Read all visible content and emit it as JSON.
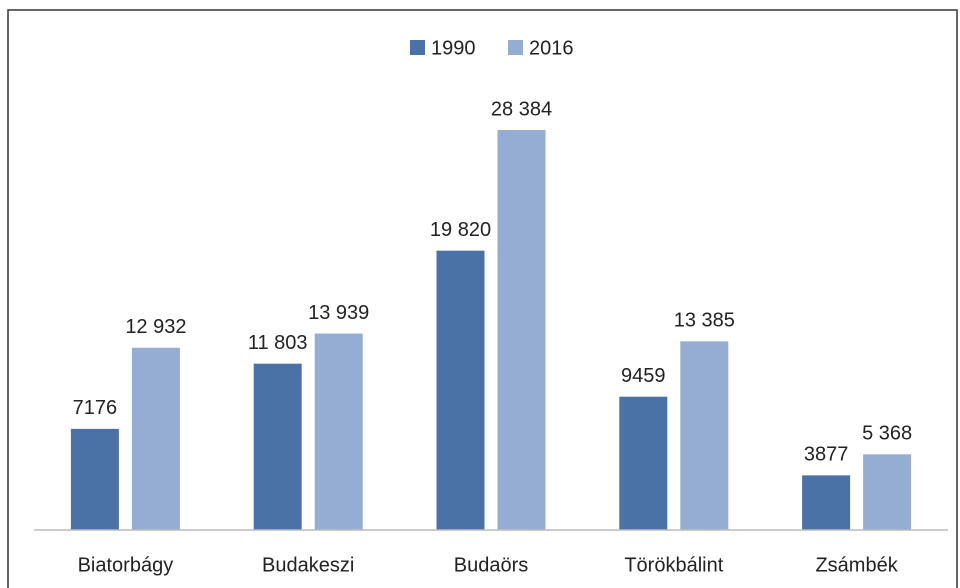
{
  "chart_data": {
    "type": "bar",
    "categories": [
      "Biatorbágy",
      "Budakeszi",
      "Budaörs",
      "Törökbálint",
      "Zsámbék"
    ],
    "series": [
      {
        "name": "1990",
        "color": "#4a72a6",
        "values": [
          7176,
          11803,
          19820,
          9459,
          3877
        ],
        "value_labels": [
          "7176",
          "11 803",
          "19 820",
          "9459",
          "3877"
        ]
      },
      {
        "name": "2016",
        "color": "#95acd3",
        "values": [
          12932,
          13939,
          28384,
          13385,
          5368
        ],
        "value_labels": [
          "12 932",
          "13 939",
          "28 384",
          "13 385",
          "5 368"
        ]
      }
    ],
    "legend": "top"
  }
}
